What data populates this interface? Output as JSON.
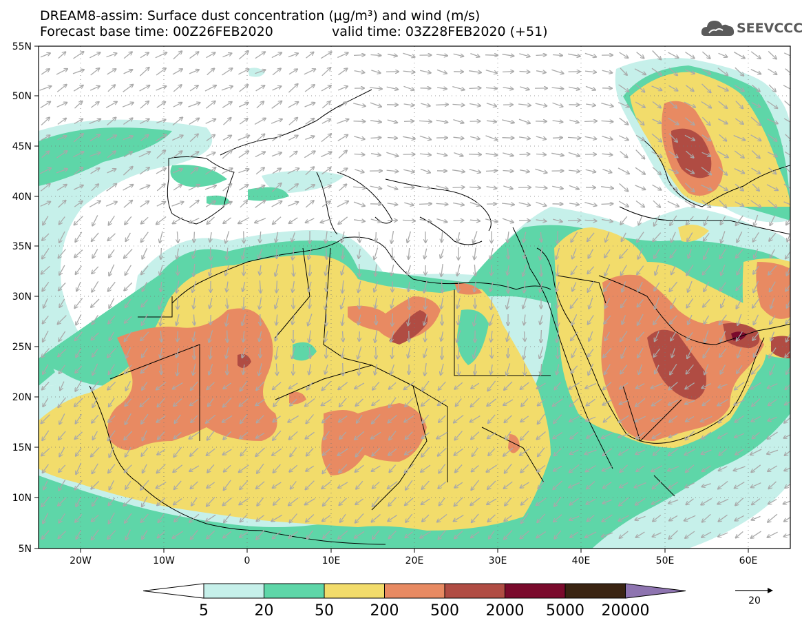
{
  "title": {
    "line1": "DREAM8-assim: Surface dust concentration (μg/m³) and wind (m/s)",
    "line2_left": "Forecast base time: 00Z26FEB2020",
    "line2_right": "valid time: 03Z28FEB2020 (+51)"
  },
  "logo": {
    "text": "SEEVCCC",
    "icon": "cloud-icon",
    "color": "#5a5a5a"
  },
  "axes": {
    "lat_labels": [
      "55N",
      "50N",
      "45N",
      "40N",
      "35N",
      "30N",
      "25N",
      "20N",
      "15N",
      "10N",
      "5N"
    ],
    "lon_labels": [
      "20W",
      "10W",
      "0",
      "10E",
      "20E",
      "30E",
      "40E",
      "50E",
      "60E"
    ]
  },
  "colorbar": {
    "labels": [
      "5",
      "20",
      "50",
      "200",
      "500",
      "2000",
      "5000",
      "20000"
    ],
    "colors": [
      "#ffffff",
      "#c6f0ea",
      "#5ed6a8",
      "#f2dc6b",
      "#e88a62",
      "#b04c43",
      "#7a0a2c",
      "#3a2412",
      "#8e74b0"
    ]
  },
  "wind_legend": {
    "value": "20"
  },
  "palette": {
    "c5": "#c6f0ea",
    "c20": "#5ed6a8",
    "c50": "#f2dc6b",
    "c200": "#e88a62",
    "c500": "#b04c43",
    "c2000": "#7a0a2c",
    "arrow": "#a9a9a9"
  }
}
